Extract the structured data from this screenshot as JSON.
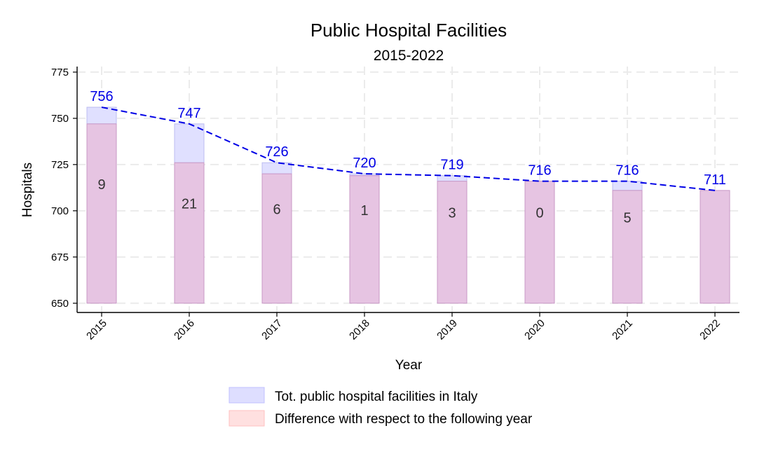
{
  "chart_data": {
    "type": "bar",
    "title": "Public Hospital Facilities",
    "subtitle": "2015-2022",
    "xlabel": "Year",
    "ylabel": "Hospitals",
    "ylim": [
      645,
      778
    ],
    "yticks": [
      650,
      675,
      700,
      725,
      750,
      775
    ],
    "bar_base": 650,
    "categories": [
      "2015",
      "2016",
      "2017",
      "2018",
      "2019",
      "2020",
      "2021",
      "2022"
    ],
    "series": [
      {
        "name": "Tot. public hospital facilities in Italy",
        "values": [
          756,
          747,
          726,
          720,
          719,
          716,
          716,
          711
        ],
        "value_labels": [
          "756",
          "747",
          "726",
          "720",
          "719",
          "716",
          "716",
          "711"
        ],
        "color": "#0000ff"
      },
      {
        "name": "Difference with respect to the following year",
        "values": [
          9,
          21,
          6,
          1,
          3,
          0,
          5,
          null
        ],
        "diff_labels": [
          "9",
          "21",
          "6",
          "1",
          "3",
          "0",
          "5"
        ],
        "color": "#ff0000"
      }
    ],
    "grid": true,
    "legend_position": "bottom"
  },
  "colors": {
    "total_fill": "#e0e0ff",
    "total_stroke": "#bcbcf0",
    "overlap_fill": "#e6c4e2",
    "overlap_stroke": "#c898c6",
    "legend_total_fill": "#dedeff",
    "legend_total_stroke": "#c0c0ff",
    "legend_diff_fill": "#ffe0e0",
    "legend_diff_stroke": "#ffc0c0",
    "line": "#0000e6",
    "value_label": "#0000e6",
    "diff_label": "#333333",
    "grid": "#ebebeb",
    "axis": "#000000",
    "text": "#000000"
  }
}
